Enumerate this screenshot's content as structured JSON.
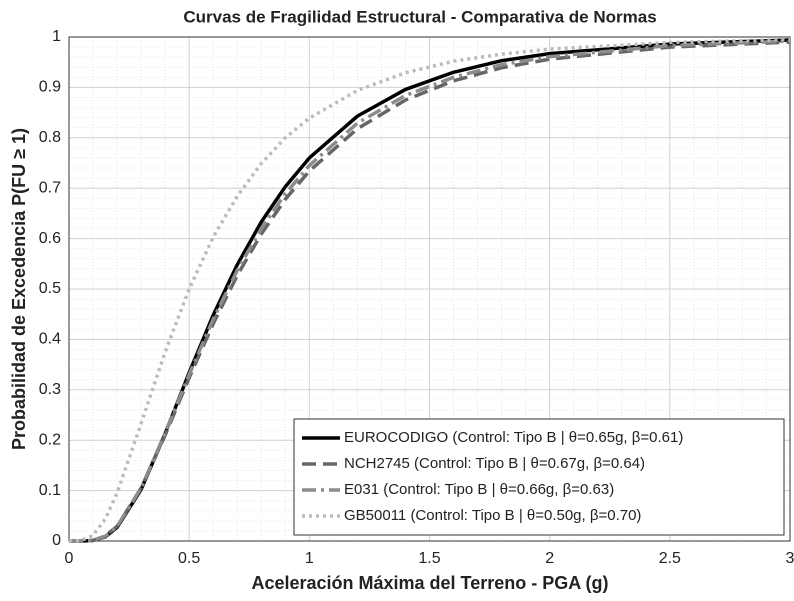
{
  "chart_data": {
    "type": "line",
    "title": "Curvas de Fragilidad Estructural - Comparativa de Normas",
    "xlabel": "Aceleración Máxima del Terreno - PGA (g)",
    "ylabel": "Probabilidad de Excedencia P(FU ≥ 1)",
    "x": [
      0,
      0.05,
      0.1,
      0.15,
      0.2,
      0.3,
      0.4,
      0.5,
      0.6,
      0.7,
      0.8,
      0.9,
      1.0,
      1.2,
      1.4,
      1.6,
      1.8,
      2.0,
      2.5,
      3.0
    ],
    "series": [
      {
        "name": "EUROCODIGO (Control: Tipo B | θ=0.65g, β=0.61)",
        "color": "#000000",
        "dash": "solid",
        "values": [
          0,
          0,
          0.001,
          0.008,
          0.027,
          0.102,
          0.213,
          0.334,
          0.448,
          0.548,
          0.633,
          0.703,
          0.76,
          0.843,
          0.896,
          0.93,
          0.953,
          0.967,
          0.986,
          0.994
        ]
      },
      {
        "name": "NCH2745 (Control: Tipo B | θ=0.67g, β=0.64)",
        "color": "#666666",
        "dash": "dashed",
        "values": [
          0,
          0,
          0.001,
          0.01,
          0.029,
          0.105,
          0.21,
          0.324,
          0.431,
          0.527,
          0.609,
          0.678,
          0.734,
          0.818,
          0.875,
          0.913,
          0.939,
          0.956,
          0.98,
          0.99
        ]
      },
      {
        "name": "E031 (Control: Tipo B | θ=0.66g, β=0.63)",
        "color": "#8c8c8c",
        "dash": "dashdot",
        "values": [
          0,
          0,
          0.001,
          0.009,
          0.029,
          0.105,
          0.214,
          0.33,
          0.44,
          0.537,
          0.62,
          0.689,
          0.745,
          0.829,
          0.884,
          0.92,
          0.945,
          0.961,
          0.983,
          0.992
        ]
      },
      {
        "name": "GB50011 (Control: Tipo B | θ=0.50g, β=0.70)",
        "color": "#bbbbbb",
        "dash": "dotted",
        "values": [
          0,
          0.001,
          0.011,
          0.043,
          0.095,
          0.233,
          0.375,
          0.5,
          0.603,
          0.684,
          0.749,
          0.8,
          0.839,
          0.894,
          0.929,
          0.952,
          0.966,
          0.976,
          0.989,
          0.995
        ]
      }
    ],
    "xlim": [
      0,
      3
    ],
    "xticks": [
      0,
      0.5,
      1,
      1.5,
      2,
      2.5,
      3
    ],
    "ylim": [
      0,
      1
    ],
    "yticks": [
      0,
      0.1,
      0.2,
      0.3,
      0.4,
      0.5,
      0.6,
      0.7,
      0.8,
      0.9,
      1
    ],
    "grid": true,
    "minor_grid": true,
    "legend": "lower right"
  }
}
